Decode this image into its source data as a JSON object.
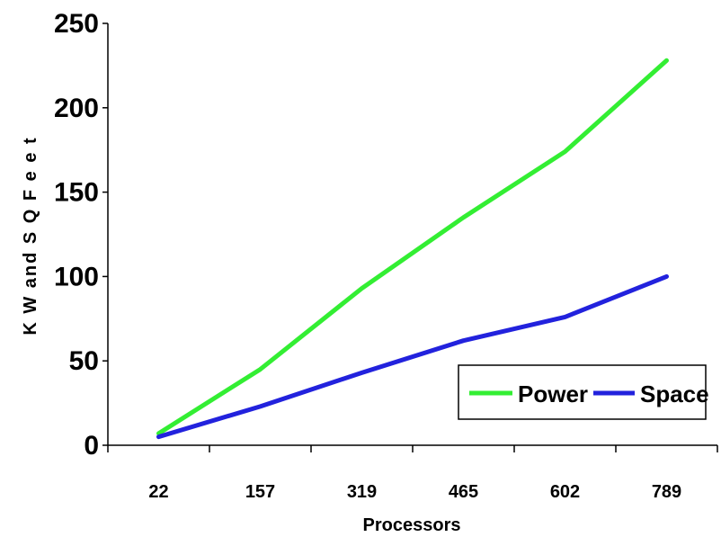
{
  "chart_data": {
    "type": "line",
    "categories": [
      "22",
      "157",
      "319",
      "465",
      "602",
      "789"
    ],
    "series": [
      {
        "name": "Power",
        "values": [
          7,
          45,
          93,
          135,
          174,
          228
        ],
        "color": "#33ee33"
      },
      {
        "name": "Space",
        "values": [
          5,
          23,
          43,
          62,
          76,
          100
        ],
        "color": "#2222dd"
      }
    ],
    "title": "",
    "xlabel": "Processors",
    "ylabel": "K W  and  S Q  F e e t",
    "ylim": [
      0,
      250
    ],
    "yticks": [
      "0",
      "50",
      "100",
      "150",
      "200",
      "250"
    ],
    "grid": false,
    "legend_position": "bottom-right"
  }
}
